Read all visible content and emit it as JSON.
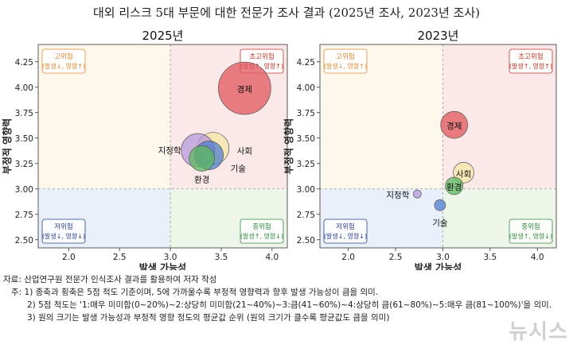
{
  "title": "대외 리스크 5대 부문에 대한 전문가 조사 결과 (2025년 조사, 2023년 조사)",
  "chart_data": [
    {
      "type": "scatter",
      "title": "2025년",
      "xlabel": "발생 가능성",
      "ylabel": "부정적 영향력",
      "xlim": [
        1.7,
        4.15
      ],
      "ylim": [
        2.42,
        4.42
      ],
      "x_ticks": [
        "2.0",
        "2.5",
        "3.0",
        "3.5",
        "4.0"
      ],
      "y_ticks": [
        "2.50",
        "2.75",
        "3.00",
        "3.25",
        "3.50",
        "3.75",
        "4.00",
        "4.25"
      ],
      "points": [
        {
          "label": "경제",
          "x": 3.73,
          "y": 3.99,
          "size": 33,
          "color": "#e0565c"
        },
        {
          "label": "사회",
          "x": 3.42,
          "y": 3.4,
          "size": 20,
          "color": "#f6e6a4"
        },
        {
          "label": "지정학",
          "x": 3.27,
          "y": 3.38,
          "size": 21,
          "color": "#b79ad9"
        },
        {
          "label": "기술",
          "x": 3.38,
          "y": 3.33,
          "size": 18,
          "color": "#4f7fcf"
        },
        {
          "label": "환경",
          "x": 3.31,
          "y": 3.3,
          "size": 16,
          "color": "#5cb85c"
        }
      ]
    },
    {
      "type": "scatter",
      "title": "2023년",
      "xlabel": "발생 가능성",
      "ylabel": "부정적 영향력",
      "xlim": [
        1.7,
        4.2
      ],
      "ylim": [
        2.42,
        4.42
      ],
      "x_ticks": [
        "2.0",
        "2.5",
        "3.0",
        "3.5",
        "4.0"
      ],
      "y_ticks": [
        "2.50",
        "2.75",
        "3.00",
        "3.25",
        "3.50",
        "3.75",
        "4.00",
        "4.25"
      ],
      "points": [
        {
          "label": "경제",
          "x": 3.12,
          "y": 3.63,
          "size": 17,
          "color": "#e0565c"
        },
        {
          "label": "사회",
          "x": 3.22,
          "y": 3.16,
          "size": 13,
          "color": "#f6e6a4"
        },
        {
          "label": "환경",
          "x": 3.12,
          "y": 3.03,
          "size": 11,
          "color": "#5cb85c"
        },
        {
          "label": "기술",
          "x": 2.97,
          "y": 2.84,
          "size": 7,
          "color": "#4f7fcf"
        },
        {
          "label": "지정학",
          "x": 2.73,
          "y": 2.95,
          "size": 5,
          "color": "#b79ad9"
        }
      ]
    }
  ],
  "quadrants": {
    "high_impact": {
      "name": "고위험",
      "sub": "(발생↓, 영향↑)",
      "color": "#e08a33"
    },
    "super_risk": {
      "name": "초고위험",
      "sub": "(발생↑, 영향↑)",
      "color": "#c0392b"
    },
    "low_risk": {
      "name": "저위험",
      "sub": "(발생↓, 영향↓)",
      "color": "#2c3e8f"
    },
    "mid_risk": {
      "name": "중위험",
      "sub": "(발생↑, 영향↓)",
      "color": "#2e8b3e"
    }
  },
  "notes": {
    "source": "자료: 산업연구원 전문가 인식조사 결과를 활용하여 저자 작성",
    "note1": "주: 1) 종축과 횡축은 5점 척도 기준이며, 5에 가까울수록 부정적 영향력과 향후 발생 가능성이 큼을 의미.",
    "note2": "2) 5점 척도는 '1:매우 미미함(0~20%)~2:상당히 미미함(21~40%)~3:큼(41~60%)~4:상당히 큼(61~80%)~5:매우 큼(81~100%)'을 의미.",
    "note3": "3) 원의 크기는 발생 가능성과 부정적 영향 정도의 평균값 순위 (원의 크기가 클수록 평균값도 큼을 의미)"
  },
  "watermark": "뉴시스"
}
